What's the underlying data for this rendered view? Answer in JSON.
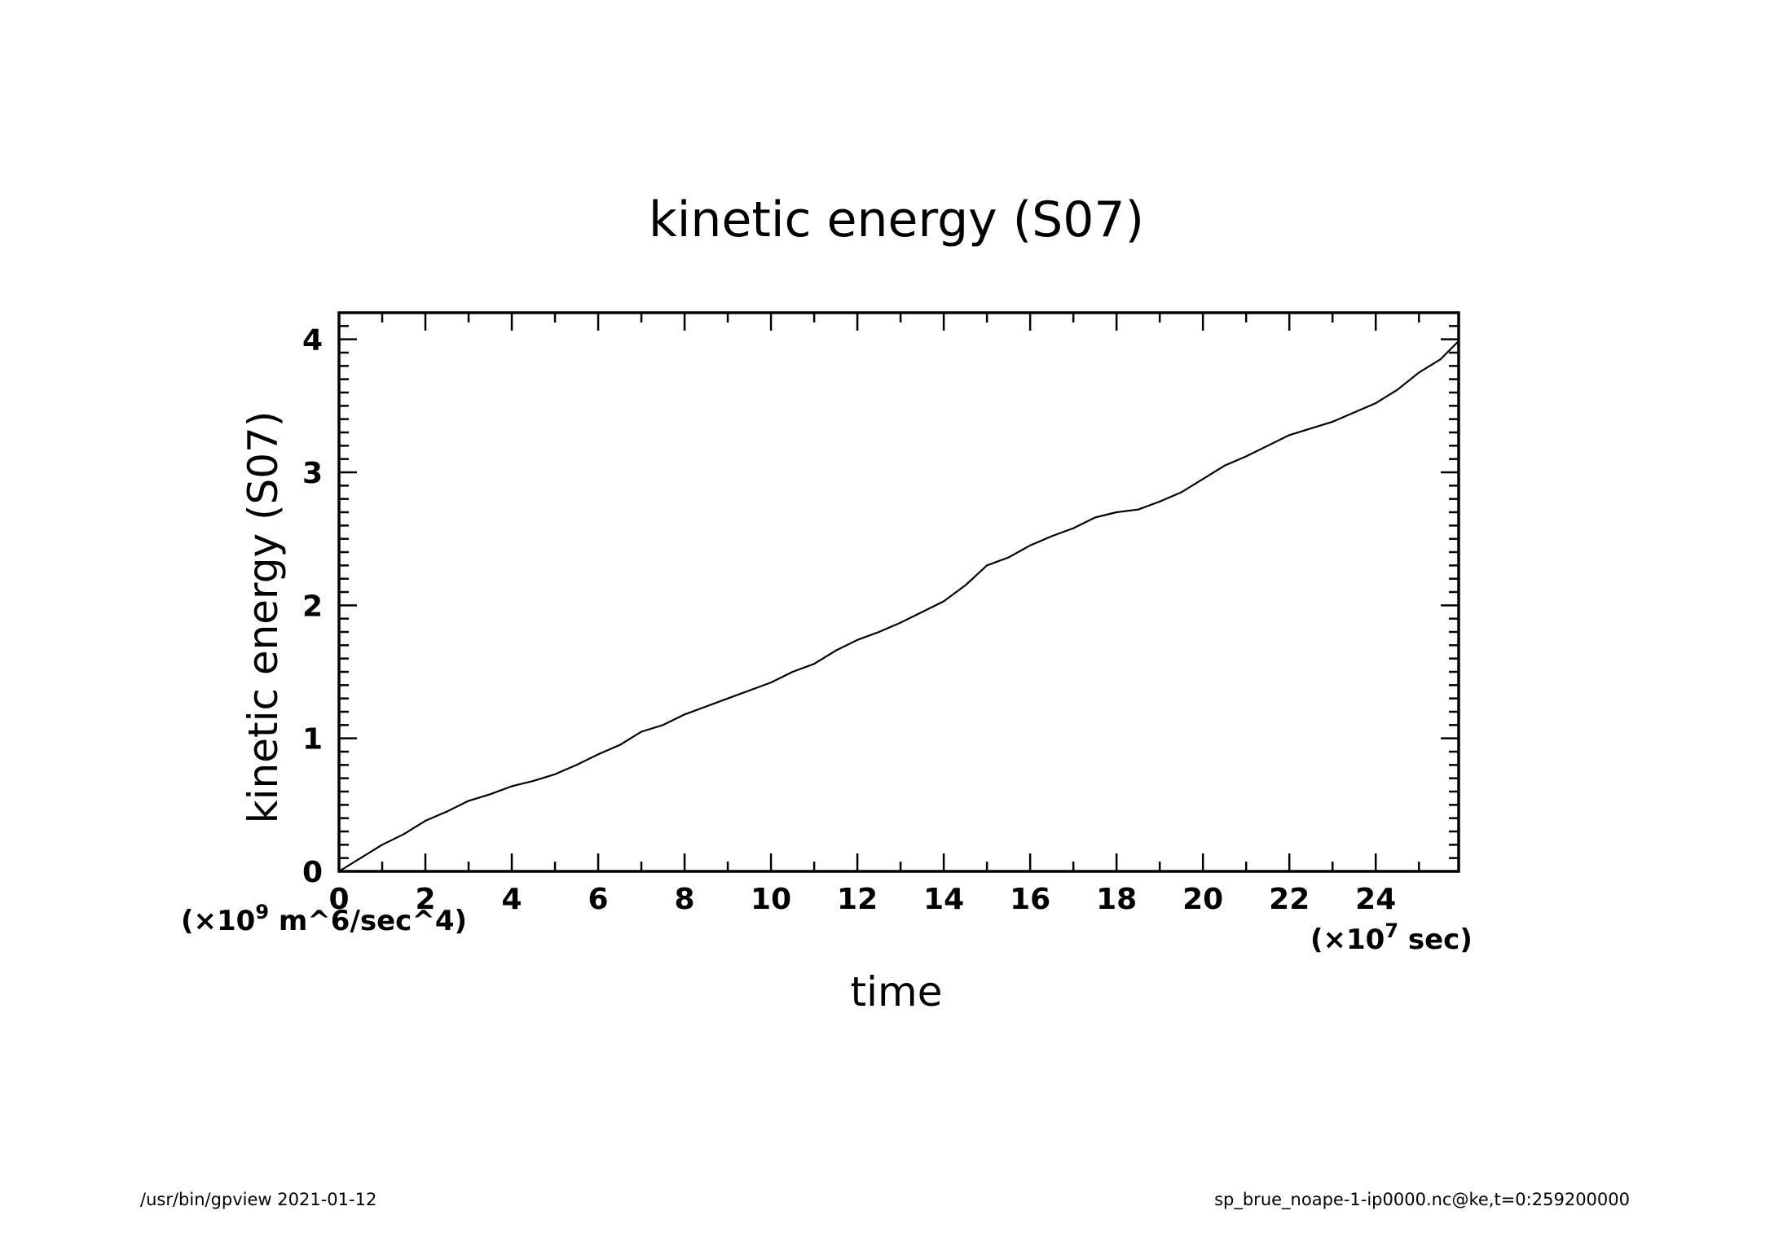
{
  "chart_data": {
    "type": "line",
    "title": "kinetic energy (S07)",
    "xlabel": "time",
    "ylabel": "kinetic energy (S07)",
    "x_unit_label": "(×10",
    "x_unit_exp": "7",
    "x_unit_tail": " sec)",
    "y_unit_label": "(×10",
    "y_unit_exp": "9",
    "y_unit_tail": " m^6/sec^4)",
    "xlim": [
      0,
      25.92
    ],
    "ylim": [
      0,
      4.2
    ],
    "x_ticks": [
      0,
      2,
      4,
      6,
      8,
      10,
      12,
      14,
      16,
      18,
      20,
      22,
      24
    ],
    "y_ticks": [
      0,
      1,
      2,
      3,
      4
    ],
    "grid": false,
    "series": [
      {
        "name": "kinetic energy (S07)",
        "x": [
          0,
          0.5,
          1,
          1.5,
          2,
          2.5,
          3,
          3.5,
          4,
          4.5,
          5,
          5.5,
          6,
          6.5,
          7,
          7.5,
          8,
          8.5,
          9,
          9.5,
          10,
          10.5,
          11,
          11.5,
          12,
          12.5,
          13,
          13.5,
          14,
          14.5,
          15,
          15.5,
          16,
          16.5,
          17,
          17.5,
          18,
          18.5,
          19,
          19.5,
          20,
          20.5,
          21,
          21.5,
          22,
          22.5,
          23,
          23.5,
          24,
          24.5,
          25,
          25.5,
          25.9
        ],
        "values": [
          0,
          0.1,
          0.2,
          0.28,
          0.38,
          0.45,
          0.53,
          0.58,
          0.64,
          0.68,
          0.73,
          0.8,
          0.88,
          0.95,
          1.05,
          1.1,
          1.18,
          1.24,
          1.3,
          1.36,
          1.42,
          1.5,
          1.56,
          1.66,
          1.74,
          1.8,
          1.87,
          1.95,
          2.03,
          2.15,
          2.3,
          2.36,
          2.45,
          2.52,
          2.58,
          2.66,
          2.7,
          2.72,
          2.78,
          2.85,
          2.95,
          3.05,
          3.12,
          3.2,
          3.28,
          3.33,
          3.38,
          3.45,
          3.52,
          3.62,
          3.75,
          3.85,
          3.98
        ]
      }
    ]
  },
  "footer": {
    "left": "/usr/bin/gpview   2021-01-12",
    "right": "sp_brue_noape-1-ip0000.nc@ke,t=0:259200000"
  },
  "colors": {
    "line": "#000000",
    "background": "#ffffff"
  }
}
